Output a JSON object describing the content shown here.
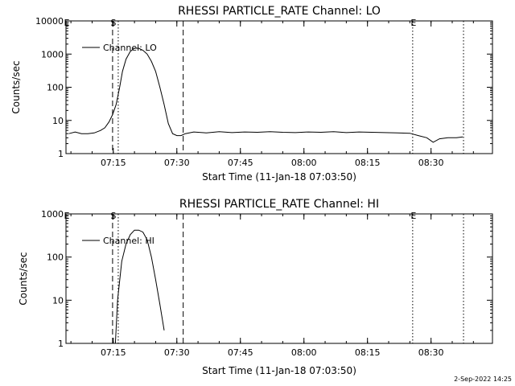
{
  "footer": {
    "timestamp": "2-Sep-2022 14:25"
  },
  "chart_data": [
    {
      "type": "line",
      "title": "RHESSI PARTICLE_RATE Channel: LO",
      "xlabel": "Start Time (11-Jan-18 07:03:50)",
      "ylabel": "Counts/sec",
      "yscale": "log",
      "ylim": [
        1,
        10000
      ],
      "yticks": [
        1,
        10,
        100,
        1000,
        10000
      ],
      "ytick_labels": [
        "1",
        "10",
        "100",
        "1000",
        "10000"
      ],
      "xlim": [
        "07:03:50",
        "08:44:30"
      ],
      "xticks": [
        "07:15",
        "07:30",
        "07:45",
        "08:00",
        "08:15",
        "08:30"
      ],
      "legend": {
        "label": "Channel: LO",
        "position": "top-left"
      },
      "markers": [
        {
          "label": "E",
          "time": "07:03:50",
          "style": "dotted"
        },
        {
          "label": "S",
          "time": "07:14:50",
          "style": "dashed"
        },
        {
          "label": "",
          "time": "07:16:10",
          "style": "dotted"
        },
        {
          "label": "",
          "time": "07:31:30",
          "style": "dashed"
        },
        {
          "label": "E",
          "time": "08:25:40",
          "style": "dotted"
        },
        {
          "label": "",
          "time": "08:37:40",
          "style": "dotted"
        }
      ],
      "series": [
        {
          "x": [
            "07:04:30",
            "07:06:00",
            "07:07:30",
            "07:09:00",
            "07:10:30",
            "07:12:00",
            "07:13:00",
            "07:14:00",
            "07:14:50",
            "07:15:40",
            "07:16:30",
            "07:17:10",
            "07:18:00",
            "07:19:00",
            "07:20:00",
            "07:21:00",
            "07:22:00",
            "07:23:00",
            "07:24:00",
            "07:25:00",
            "07:26:00",
            "07:27:00",
            "07:28:00",
            "07:29:00",
            "07:30:00",
            "07:31:00",
            "07:32:00",
            "07:34:00",
            "07:37:00",
            "07:40:00",
            "07:43:00",
            "07:46:00",
            "07:49:00",
            "07:52:00",
            "07:55:00",
            "07:58:00",
            "08:01:00",
            "08:04:00",
            "08:07:00",
            "08:10:00",
            "08:13:00",
            "08:16:00",
            "08:19:00",
            "08:22:00",
            "08:25:00",
            "08:27:00",
            "08:29:00",
            "08:30:30",
            "08:32:00",
            "08:34:00",
            "08:36:00",
            "08:37:30"
          ],
          "values": [
            4,
            4.5,
            4,
            4,
            4.2,
            5,
            6,
            9,
            15,
            30,
            100,
            300,
            700,
            1200,
            1500,
            1500,
            1300,
            1000,
            600,
            300,
            100,
            30,
            8,
            4,
            3.5,
            3.5,
            4,
            4.5,
            4.2,
            4.6,
            4.3,
            4.5,
            4.4,
            4.6,
            4.4,
            4.3,
            4.5,
            4.4,
            4.6,
            4.3,
            4.5,
            4.4,
            4.3,
            4.2,
            4.1,
            3.5,
            3,
            2.2,
            2.8,
            3,
            3,
            3.2
          ]
        }
      ]
    },
    {
      "type": "line",
      "title": "RHESSI PARTICLE_RATE Channel: HI",
      "xlabel": "Start Time (11-Jan-18 07:03:50)",
      "ylabel": "Counts/sec",
      "yscale": "log",
      "ylim": [
        1,
        1000
      ],
      "yticks": [
        1,
        10,
        100,
        1000
      ],
      "ytick_labels": [
        "1",
        "10",
        "100",
        "1000"
      ],
      "xlim": [
        "07:03:50",
        "08:44:30"
      ],
      "xticks": [
        "07:15",
        "07:30",
        "07:45",
        "08:00",
        "08:15",
        "08:30"
      ],
      "legend": {
        "label": "Channel: HI",
        "position": "top-left"
      },
      "markers": [
        {
          "label": "E",
          "time": "07:03:50",
          "style": "dotted"
        },
        {
          "label": "S",
          "time": "07:14:50",
          "style": "dashed"
        },
        {
          "label": "",
          "time": "07:16:10",
          "style": "dotted"
        },
        {
          "label": "",
          "time": "07:31:30",
          "style": "dashed"
        },
        {
          "label": "E",
          "time": "08:25:40",
          "style": "dotted"
        },
        {
          "label": "",
          "time": "08:37:40",
          "style": "dotted"
        }
      ],
      "series": [
        {
          "x": [
            "07:15:30",
            "07:16:00",
            "07:17:00",
            "07:18:00",
            "07:19:00",
            "07:20:00",
            "07:21:00",
            "07:22:00",
            "07:23:00",
            "07:24:00",
            "07:25:00",
            "07:26:00",
            "07:27:00"
          ],
          "values": [
            1,
            10,
            80,
            200,
            330,
            420,
            420,
            380,
            250,
            100,
            30,
            8,
            2
          ]
        }
      ]
    }
  ]
}
